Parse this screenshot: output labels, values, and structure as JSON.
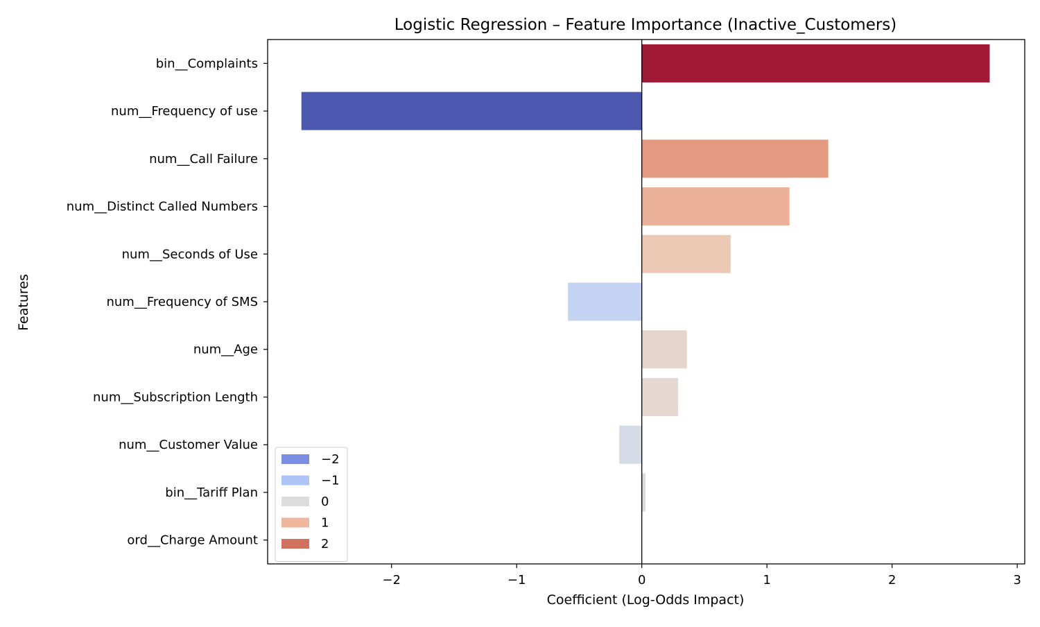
{
  "chart_data": {
    "type": "bar",
    "orientation": "horizontal",
    "title": "Logistic Regression – Feature Importance (Inactive_Customers)",
    "xlabel": "Coefficient (Log-Odds Impact)",
    "ylabel": "Features",
    "xlim": [
      -2.99,
      3.06
    ],
    "x_ticks": [
      {
        "value": -2,
        "label": "−2"
      },
      {
        "value": -1,
        "label": "−1"
      },
      {
        "value": 0,
        "label": "0"
      },
      {
        "value": 1,
        "label": "1"
      },
      {
        "value": 2,
        "label": "2"
      },
      {
        "value": 3,
        "label": "3"
      }
    ],
    "grid": false,
    "zero_line": true,
    "categories": [
      "bin__Complaints",
      "num__Frequency of use",
      "num__Call Failure",
      "num__Distinct Called Numbers",
      "num__Seconds of Use",
      "num__Frequency of SMS",
      "num__Age",
      "num__Subscription Length",
      "num__Customer Value",
      "bin__Tariff Plan",
      "ord__Charge Amount"
    ],
    "values": [
      2.78,
      -2.72,
      1.49,
      1.18,
      0.71,
      -0.59,
      0.36,
      0.29,
      -0.18,
      0.03,
      0.0
    ],
    "bar_colors": [
      "#a11a35",
      "#4b58b0",
      "#e39a81",
      "#ebb098",
      "#ecc9b4",
      "#c3d3f1",
      "#e6d5cc",
      "#e5d8d1",
      "#d4dbe7",
      "#dcdcdc",
      "#dcdcdc"
    ],
    "legend": {
      "position": "lower-left",
      "entries": [
        {
          "label": "−2",
          "color": "#7a8fe2"
        },
        {
          "label": "−1",
          "color": "#adc4f6"
        },
        {
          "label": "0",
          "color": "#dcdcdc"
        },
        {
          "label": "1",
          "color": "#efb69e"
        },
        {
          "label": "2",
          "color": "#d2705e"
        }
      ]
    }
  }
}
